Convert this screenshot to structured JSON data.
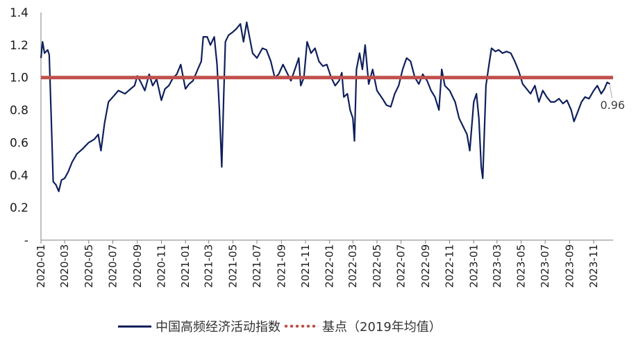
{
  "chart_data": {
    "type": "line",
    "title": "",
    "ylim": [
      0,
      1.4
    ],
    "yticks": [
      {
        "v": 1.4,
        "label": "1.4"
      },
      {
        "v": 1.2,
        "label": "1.2"
      },
      {
        "v": 1.0,
        "label": "1.0"
      },
      {
        "v": 0.8,
        "label": "0.8"
      },
      {
        "v": 0.6,
        "label": "0.6"
      },
      {
        "v": 0.4,
        "label": "0.4"
      },
      {
        "v": 0.2,
        "label": "0.2"
      },
      {
        "v": 0.0,
        "label": "-"
      }
    ],
    "xticks": [
      "2020-01",
      "2020-03",
      "2020-05",
      "2020-07",
      "2020-09",
      "2020-11",
      "2021-01",
      "2021-03",
      "2021-05",
      "2021-07",
      "2021-09",
      "2021-11",
      "2022-01",
      "2022-03",
      "2022-05",
      "2022-07",
      "2022-09",
      "2022-11",
      "2023-01",
      "2023-03",
      "2023-05",
      "2023-07",
      "2023-09",
      "2023-11"
    ],
    "series": [
      {
        "name": "中国高频经济活动指数",
        "color": "#0e1f5b",
        "points": [
          [
            "2020-01-01",
            1.12
          ],
          [
            "2020-01-05",
            1.22
          ],
          [
            "2020-01-10",
            1.15
          ],
          [
            "2020-01-18",
            1.17
          ],
          [
            "2020-01-22",
            1.14
          ],
          [
            "2020-01-27",
            0.75
          ],
          [
            "2020-02-01",
            0.36
          ],
          [
            "2020-02-08",
            0.34
          ],
          [
            "2020-02-15",
            0.3
          ],
          [
            "2020-02-22",
            0.37
          ],
          [
            "2020-03-01",
            0.38
          ],
          [
            "2020-03-10",
            0.42
          ],
          [
            "2020-03-20",
            0.48
          ],
          [
            "2020-04-01",
            0.53
          ],
          [
            "2020-04-15",
            0.56
          ],
          [
            "2020-05-01",
            0.6
          ],
          [
            "2020-05-15",
            0.62
          ],
          [
            "2020-05-25",
            0.65
          ],
          [
            "2020-06-01",
            0.55
          ],
          [
            "2020-06-10",
            0.72
          ],
          [
            "2020-06-20",
            0.85
          ],
          [
            "2020-07-01",
            0.88
          ],
          [
            "2020-07-15",
            0.92
          ],
          [
            "2020-08-01",
            0.9
          ],
          [
            "2020-08-15",
            0.93
          ],
          [
            "2020-08-25",
            0.95
          ],
          [
            "2020-09-01",
            1.01
          ],
          [
            "2020-09-10",
            0.97
          ],
          [
            "2020-09-20",
            0.92
          ],
          [
            "2020-10-01",
            1.02
          ],
          [
            "2020-10-10",
            0.95
          ],
          [
            "2020-10-20",
            0.99
          ],
          [
            "2020-11-01",
            0.86
          ],
          [
            "2020-11-10",
            0.93
          ],
          [
            "2020-11-20",
            0.95
          ],
          [
            "2020-12-01",
            1.0
          ],
          [
            "2020-12-10",
            1.02
          ],
          [
            "2020-12-20",
            1.08
          ],
          [
            "2021-01-01",
            0.93
          ],
          [
            "2021-01-10",
            0.96
          ],
          [
            "2021-01-20",
            0.98
          ],
          [
            "2021-02-01",
            1.05
          ],
          [
            "2021-02-10",
            1.1
          ],
          [
            "2021-02-15",
            1.25
          ],
          [
            "2021-02-25",
            1.25
          ],
          [
            "2021-03-05",
            1.2
          ],
          [
            "2021-03-15",
            1.25
          ],
          [
            "2021-03-22",
            1.08
          ],
          [
            "2021-03-28",
            0.8
          ],
          [
            "2021-04-03",
            0.45
          ],
          [
            "2021-04-08",
            0.9
          ],
          [
            "2021-04-12",
            1.22
          ],
          [
            "2021-04-20",
            1.26
          ],
          [
            "2021-05-01",
            1.28
          ],
          [
            "2021-05-10",
            1.3
          ],
          [
            "2021-05-20",
            1.33
          ],
          [
            "2021-05-28",
            1.22
          ],
          [
            "2021-06-05",
            1.34
          ],
          [
            "2021-06-12",
            1.25
          ],
          [
            "2021-06-20",
            1.15
          ],
          [
            "2021-07-01",
            1.12
          ],
          [
            "2021-07-15",
            1.18
          ],
          [
            "2021-07-25",
            1.17
          ],
          [
            "2021-08-05",
            1.1
          ],
          [
            "2021-08-15",
            1.0
          ],
          [
            "2021-08-25",
            1.02
          ],
          [
            "2021-09-05",
            1.08
          ],
          [
            "2021-09-15",
            1.03
          ],
          [
            "2021-09-25",
            0.98
          ],
          [
            "2021-10-05",
            1.05
          ],
          [
            "2021-10-15",
            1.12
          ],
          [
            "2021-10-20",
            0.95
          ],
          [
            "2021-10-28",
            1.0
          ],
          [
            "2021-11-05",
            1.22
          ],
          [
            "2021-11-15",
            1.15
          ],
          [
            "2021-11-25",
            1.18
          ],
          [
            "2021-12-05",
            1.1
          ],
          [
            "2021-12-15",
            1.07
          ],
          [
            "2021-12-25",
            1.08
          ],
          [
            "2022-01-05",
            1.0
          ],
          [
            "2022-01-15",
            0.95
          ],
          [
            "2022-01-25",
            0.98
          ],
          [
            "2022-02-01",
            1.03
          ],
          [
            "2022-02-06",
            0.88
          ],
          [
            "2022-02-15",
            0.9
          ],
          [
            "2022-02-22",
            0.8
          ],
          [
            "2022-03-01",
            0.75
          ],
          [
            "2022-03-05",
            0.61
          ],
          [
            "2022-03-10",
            1.05
          ],
          [
            "2022-03-18",
            1.15
          ],
          [
            "2022-03-25",
            1.05
          ],
          [
            "2022-04-01",
            1.2
          ],
          [
            "2022-04-10",
            0.96
          ],
          [
            "2022-04-20",
            1.05
          ],
          [
            "2022-05-01",
            0.92
          ],
          [
            "2022-05-15",
            0.87
          ],
          [
            "2022-05-25",
            0.83
          ],
          [
            "2022-06-05",
            0.82
          ],
          [
            "2022-06-15",
            0.9
          ],
          [
            "2022-06-25",
            0.95
          ],
          [
            "2022-07-05",
            1.05
          ],
          [
            "2022-07-15",
            1.12
          ],
          [
            "2022-07-25",
            1.1
          ],
          [
            "2022-08-05",
            1.0
          ],
          [
            "2022-08-15",
            0.96
          ],
          [
            "2022-08-25",
            1.02
          ],
          [
            "2022-09-05",
            0.98
          ],
          [
            "2022-09-15",
            0.92
          ],
          [
            "2022-09-25",
            0.88
          ],
          [
            "2022-10-05",
            0.8
          ],
          [
            "2022-10-12",
            1.05
          ],
          [
            "2022-10-20",
            0.95
          ],
          [
            "2022-11-01",
            0.92
          ],
          [
            "2022-11-15",
            0.85
          ],
          [
            "2022-11-25",
            0.75
          ],
          [
            "2022-12-05",
            0.7
          ],
          [
            "2022-12-15",
            0.65
          ],
          [
            "2022-12-22",
            0.55
          ],
          [
            "2023-01-01",
            0.85
          ],
          [
            "2023-01-08",
            0.9
          ],
          [
            "2023-01-14",
            0.75
          ],
          [
            "2023-01-20",
            0.45
          ],
          [
            "2023-01-24",
            0.38
          ],
          [
            "2023-02-01",
            0.95
          ],
          [
            "2023-02-10",
            1.1
          ],
          [
            "2023-02-15",
            1.18
          ],
          [
            "2023-02-25",
            1.16
          ],
          [
            "2023-03-05",
            1.17
          ],
          [
            "2023-03-15",
            1.15
          ],
          [
            "2023-03-25",
            1.16
          ],
          [
            "2023-04-05",
            1.15
          ],
          [
            "2023-04-15",
            1.1
          ],
          [
            "2023-04-25",
            1.04
          ],
          [
            "2023-05-05",
            0.96
          ],
          [
            "2023-05-15",
            0.93
          ],
          [
            "2023-05-25",
            0.9
          ],
          [
            "2023-06-05",
            0.95
          ],
          [
            "2023-06-15",
            0.85
          ],
          [
            "2023-06-25",
            0.92
          ],
          [
            "2023-07-05",
            0.88
          ],
          [
            "2023-07-15",
            0.85
          ],
          [
            "2023-07-25",
            0.85
          ],
          [
            "2023-08-05",
            0.87
          ],
          [
            "2023-08-15",
            0.84
          ],
          [
            "2023-08-25",
            0.86
          ],
          [
            "2023-09-05",
            0.8
          ],
          [
            "2023-09-12",
            0.73
          ],
          [
            "2023-09-20",
            0.78
          ],
          [
            "2023-10-01",
            0.85
          ],
          [
            "2023-10-10",
            0.88
          ],
          [
            "2023-10-20",
            0.87
          ],
          [
            "2023-11-01",
            0.92
          ],
          [
            "2023-11-10",
            0.95
          ],
          [
            "2023-11-20",
            0.9
          ],
          [
            "2023-11-28",
            0.93
          ],
          [
            "2023-12-05",
            0.97
          ],
          [
            "2023-12-12",
            0.96
          ]
        ]
      },
      {
        "name": "基点（2019年均值）",
        "color": "#c0504d",
        "points": [
          [
            "2020-01-01",
            1.0
          ],
          [
            "2023-12-12",
            1.0
          ]
        ]
      }
    ],
    "annotations": [
      {
        "x": "2023-12-12",
        "y": 0.96,
        "text": "0.96"
      }
    ],
    "legend": "bottom"
  }
}
